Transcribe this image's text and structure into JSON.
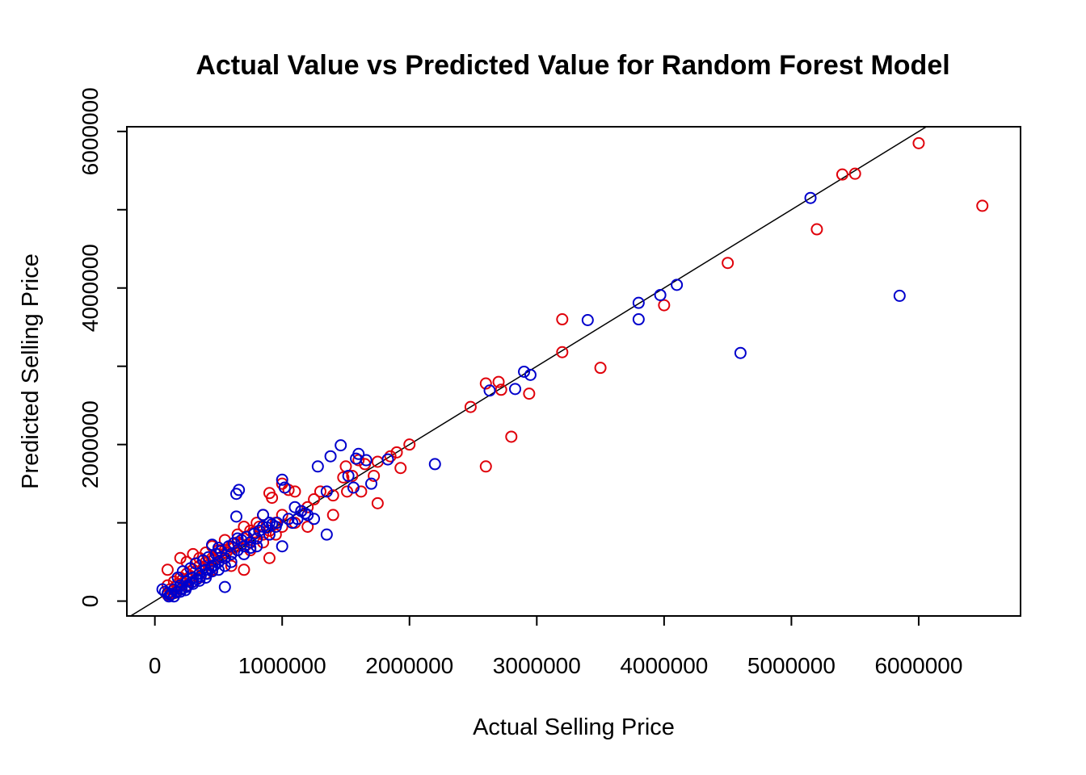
{
  "chart_data": {
    "type": "scatter",
    "title": "Actual Value vs Predicted Value for Random Forest Model",
    "xlabel": "Actual Selling Price",
    "ylabel": "Predicted Selling Price",
    "xlim": [
      -220000,
      6800000
    ],
    "ylim": [
      -190000,
      6060000
    ],
    "x_ticks": [
      0,
      1000000,
      2000000,
      3000000,
      4000000,
      5000000,
      6000000
    ],
    "x_tick_labels": [
      "0",
      "1000000",
      "2000000",
      "3000000",
      "4000000",
      "5000000",
      "6000000"
    ],
    "y_ticks": [
      0,
      1000000,
      2000000,
      3000000,
      4000000,
      5000000,
      6000000
    ],
    "y_tick_labels": [
      "0",
      "2000000",
      "4000000",
      "6000000"
    ],
    "y_labeled_ticks": [
      0,
      2000000,
      4000000,
      6000000
    ],
    "grid": false,
    "legend": "none",
    "reference_line": {
      "type": "identity",
      "slope": 1,
      "intercept": 0,
      "color": "#000000"
    },
    "colors": {
      "red": "#e0000a",
      "blue": "#0000cc"
    },
    "series": [
      {
        "color": "#e0000a",
        "points": [
          [
            6000000,
            5850000
          ],
          [
            5500000,
            5460000
          ],
          [
            5400000,
            5450000
          ],
          [
            6500000,
            5050000
          ],
          [
            5200000,
            4750000
          ],
          [
            4500000,
            4320000
          ],
          [
            4000000,
            3780000
          ],
          [
            3200000,
            3600000
          ],
          [
            3200000,
            3180000
          ],
          [
            3500000,
            2980000
          ],
          [
            2600000,
            2780000
          ],
          [
            2700000,
            2800000
          ],
          [
            2720000,
            2700000
          ],
          [
            2940000,
            2650000
          ],
          [
            2480000,
            2480000
          ],
          [
            2800000,
            2100000
          ],
          [
            2600000,
            1720000
          ],
          [
            2000000,
            2000000
          ],
          [
            1900000,
            1900000
          ],
          [
            1850000,
            1850000
          ],
          [
            1930000,
            1700000
          ],
          [
            1750000,
            1780000
          ],
          [
            1650000,
            1750000
          ],
          [
            1600000,
            1800000
          ],
          [
            1720000,
            1600000
          ],
          [
            1500000,
            1720000
          ],
          [
            1480000,
            1580000
          ],
          [
            1550000,
            1600000
          ],
          [
            1510000,
            1400000
          ],
          [
            1620000,
            1400000
          ],
          [
            1750000,
            1250000
          ],
          [
            1400000,
            1350000
          ],
          [
            1400000,
            1100000
          ],
          [
            1300000,
            1400000
          ],
          [
            1250000,
            1300000
          ],
          [
            1100000,
            1400000
          ],
          [
            1050000,
            1420000
          ],
          [
            1000000,
            1500000
          ],
          [
            900000,
            1380000
          ],
          [
            920000,
            1320000
          ],
          [
            1200000,
            1200000
          ],
          [
            1150000,
            1150000
          ],
          [
            1000000,
            1100000
          ],
          [
            950000,
            1000000
          ],
          [
            850000,
            1100000
          ],
          [
            800000,
            1000000
          ],
          [
            1200000,
            950000
          ],
          [
            1100000,
            1000000
          ],
          [
            900000,
            900000
          ],
          [
            850000,
            850000
          ],
          [
            800000,
            800000
          ],
          [
            750000,
            900000
          ],
          [
            700000,
            800000
          ],
          [
            650000,
            750000
          ],
          [
            600000,
            700000
          ],
          [
            550000,
            650000
          ],
          [
            500000,
            600000
          ],
          [
            450000,
            550000
          ],
          [
            400000,
            500000
          ],
          [
            350000,
            450000
          ],
          [
            300000,
            400000
          ],
          [
            250000,
            350000
          ],
          [
            200000,
            300000
          ],
          [
            150000,
            250000
          ],
          [
            100000,
            200000
          ],
          [
            300000,
            600000
          ],
          [
            400000,
            620000
          ],
          [
            550000,
            550000
          ],
          [
            500000,
            500000
          ],
          [
            600000,
            600000
          ],
          [
            650000,
            650000
          ],
          [
            720000,
            720000
          ],
          [
            750000,
            650000
          ],
          [
            850000,
            750000
          ],
          [
            950000,
            850000
          ],
          [
            1000000,
            950000
          ],
          [
            900000,
            550000
          ],
          [
            700000,
            400000
          ],
          [
            600000,
            450000
          ],
          [
            450000,
            400000
          ],
          [
            400000,
            350000
          ],
          [
            350000,
            300000
          ],
          [
            300000,
            250000
          ],
          [
            250000,
            200000
          ],
          [
            200000,
            150000
          ],
          [
            150000,
            100000
          ],
          [
            100000,
            80000
          ],
          [
            100000,
            400000
          ],
          [
            200000,
            550000
          ],
          [
            250000,
            500000
          ],
          [
            350000,
            550000
          ],
          [
            450000,
            700000
          ],
          [
            500000,
            650000
          ],
          [
            550000,
            780000
          ],
          [
            650000,
            850000
          ],
          [
            700000,
            950000
          ],
          [
            780000,
            880000
          ],
          [
            820000,
            950000
          ],
          [
            320000,
            380000
          ],
          [
            380000,
            420000
          ],
          [
            420000,
            460000
          ],
          [
            460000,
            520000
          ],
          [
            520000,
            560000
          ],
          [
            560000,
            620000
          ],
          [
            620000,
            680000
          ],
          [
            680000,
            720000
          ],
          [
            180000,
            220000
          ],
          [
            220000,
            280000
          ],
          [
            280000,
            320000
          ],
          [
            120000,
            150000
          ],
          [
            160000,
            180000
          ],
          [
            240000,
            260000
          ]
        ]
      },
      {
        "color": "#0000cc",
        "points": [
          [
            5150000,
            5150000
          ],
          [
            5850000,
            3900000
          ],
          [
            4100000,
            4040000
          ],
          [
            3970000,
            3910000
          ],
          [
            3800000,
            3810000
          ],
          [
            3800000,
            3600000
          ],
          [
            3400000,
            3590000
          ],
          [
            4600000,
            3170000
          ],
          [
            2900000,
            2930000
          ],
          [
            2950000,
            2890000
          ],
          [
            2630000,
            2690000
          ],
          [
            2830000,
            2710000
          ],
          [
            2200000,
            1750000
          ],
          [
            1830000,
            1810000
          ],
          [
            1600000,
            1880000
          ],
          [
            1460000,
            1990000
          ],
          [
            1380000,
            1850000
          ],
          [
            1580000,
            1820000
          ],
          [
            1660000,
            1800000
          ],
          [
            1280000,
            1720000
          ],
          [
            1520000,
            1600000
          ],
          [
            1700000,
            1500000
          ],
          [
            1560000,
            1450000
          ],
          [
            1350000,
            1400000
          ],
          [
            1000000,
            1550000
          ],
          [
            1020000,
            1450000
          ],
          [
            660000,
            1420000
          ],
          [
            640000,
            1370000
          ],
          [
            1100000,
            1200000
          ],
          [
            1150000,
            1150000
          ],
          [
            1250000,
            1050000
          ],
          [
            1350000,
            850000
          ],
          [
            1000000,
            700000
          ],
          [
            640000,
            1080000
          ],
          [
            850000,
            1100000
          ],
          [
            900000,
            1000000
          ],
          [
            950000,
            950000
          ],
          [
            1050000,
            1050000
          ],
          [
            1200000,
            1100000
          ],
          [
            900000,
            850000
          ],
          [
            800000,
            800000
          ],
          [
            850000,
            950000
          ],
          [
            750000,
            750000
          ],
          [
            700000,
            700000
          ],
          [
            650000,
            650000
          ],
          [
            600000,
            600000
          ],
          [
            550000,
            550000
          ],
          [
            500000,
            500000
          ],
          [
            450000,
            450000
          ],
          [
            400000,
            400000
          ],
          [
            350000,
            350000
          ],
          [
            300000,
            300000
          ],
          [
            250000,
            250000
          ],
          [
            200000,
            200000
          ],
          [
            150000,
            150000
          ],
          [
            100000,
            100000
          ],
          [
            60000,
            150000
          ],
          [
            80000,
            120000
          ],
          [
            120000,
            80000
          ],
          [
            150000,
            60000
          ],
          [
            550000,
            180000
          ],
          [
            450000,
            720000
          ],
          [
            500000,
            680000
          ],
          [
            650000,
            800000
          ],
          [
            700000,
            600000
          ],
          [
            750000,
            680000
          ],
          [
            800000,
            700000
          ],
          [
            600000,
            500000
          ],
          [
            550000,
            450000
          ],
          [
            500000,
            400000
          ],
          [
            450000,
            380000
          ],
          [
            400000,
            300000
          ],
          [
            350000,
            260000
          ],
          [
            300000,
            220000
          ],
          [
            250000,
            180000
          ],
          [
            200000,
            120000
          ],
          [
            180000,
            300000
          ],
          [
            220000,
            380000
          ],
          [
            280000,
            420000
          ],
          [
            320000,
            480000
          ],
          [
            380000,
            520000
          ],
          [
            420000,
            560000
          ],
          [
            480000,
            600000
          ],
          [
            520000,
            640000
          ],
          [
            580000,
            700000
          ],
          [
            620000,
            740000
          ],
          [
            680000,
            780000
          ],
          [
            720000,
            820000
          ],
          [
            780000,
            860000
          ],
          [
            820000,
            900000
          ],
          [
            880000,
            940000
          ],
          [
            920000,
            980000
          ],
          [
            960000,
            1000000
          ],
          [
            1080000,
            1000000
          ],
          [
            1120000,
            1050000
          ],
          [
            1180000,
            1120000
          ],
          [
            110000,
            60000
          ],
          [
            130000,
            90000
          ],
          [
            170000,
            110000
          ],
          [
            210000,
            160000
          ],
          [
            240000,
            140000
          ],
          [
            260000,
            200000
          ],
          [
            290000,
            240000
          ],
          [
            330000,
            280000
          ],
          [
            360000,
            320000
          ],
          [
            410000,
            350000
          ],
          [
            440000,
            420000
          ],
          [
            470000,
            460000
          ]
        ]
      }
    ]
  }
}
